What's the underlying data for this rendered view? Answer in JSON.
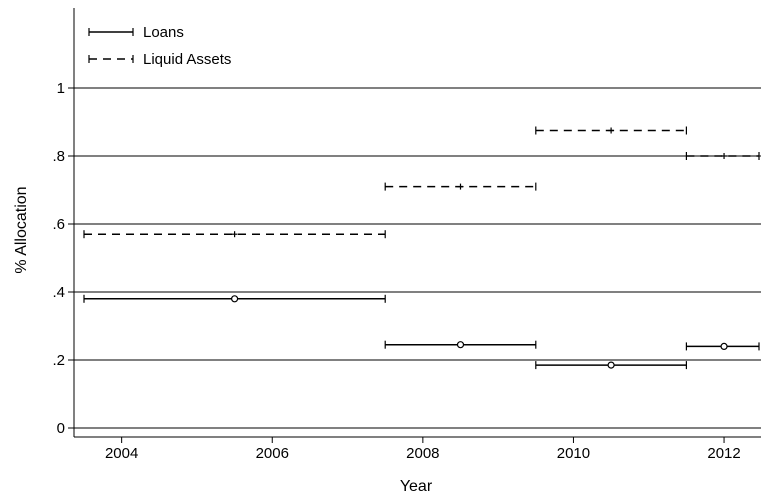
{
  "chart_data": {
    "type": "scatter",
    "xlabel": "Year",
    "ylabel": "% Allocation",
    "xlim": [
      2003.5,
      2012.5
    ],
    "ylim": [
      0,
      1
    ],
    "grid": true,
    "legend_position": "top-left",
    "x_ticks": [
      {
        "value": 2004,
        "label": "2004"
      },
      {
        "value": 2006,
        "label": "2006"
      },
      {
        "value": 2008,
        "label": "2008"
      },
      {
        "value": 2010,
        "label": "2010"
      },
      {
        "value": 2012,
        "label": "2012"
      }
    ],
    "y_ticks": [
      {
        "value": 0,
        "label": "0"
      },
      {
        "value": 0.2,
        "label": ".2"
      },
      {
        "value": 0.4,
        "label": ".4"
      },
      {
        "value": 0.6,
        "label": ".6"
      },
      {
        "value": 0.8,
        "label": ".8"
      },
      {
        "value": 1,
        "label": "1"
      }
    ],
    "series": [
      {
        "name": "Loans",
        "line_style": "solid",
        "marker": "circle",
        "segments": [
          {
            "x_start": 2003.5,
            "x_end": 2007.5,
            "x_mid": 2005.5,
            "y": 0.38
          },
          {
            "x_start": 2007.5,
            "x_end": 2009.5,
            "x_mid": 2008.5,
            "y": 0.245
          },
          {
            "x_start": 2009.5,
            "x_end": 2011.5,
            "x_mid": 2010.5,
            "y": 0.185
          },
          {
            "x_start": 2011.5,
            "x_end": 2012.5,
            "x_mid": 2012.0,
            "y": 0.24
          }
        ]
      },
      {
        "name": "Liquid Assets",
        "line_style": "dashed",
        "marker": "plus",
        "segments": [
          {
            "x_start": 2003.5,
            "x_end": 2007.5,
            "x_mid": 2005.5,
            "y": 0.57
          },
          {
            "x_start": 2007.5,
            "x_end": 2009.5,
            "x_mid": 2008.5,
            "y": 0.71
          },
          {
            "x_start": 2009.5,
            "x_end": 2011.5,
            "x_mid": 2010.5,
            "y": 0.875
          },
          {
            "x_start": 2011.5,
            "x_end": 2012.5,
            "x_mid": 2012.0,
            "y": 0.8
          }
        ]
      }
    ]
  }
}
